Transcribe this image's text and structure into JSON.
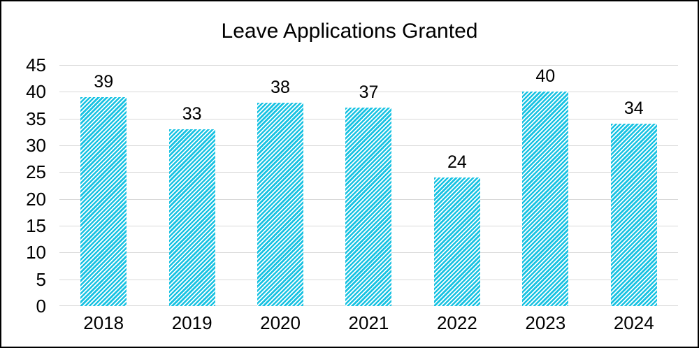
{
  "chart_data": {
    "type": "bar",
    "title": "Leave Applications Granted",
    "categories": [
      "2018",
      "2019",
      "2020",
      "2021",
      "2022",
      "2023",
      "2024"
    ],
    "values": [
      39,
      33,
      38,
      37,
      24,
      40,
      34
    ],
    "data_labels_shown": true,
    "xlabel": "",
    "ylabel": "",
    "ylim": [
      0,
      45
    ],
    "yticks": [
      0,
      5,
      10,
      15,
      20,
      25,
      30,
      35,
      40,
      45
    ],
    "grid": true,
    "legend": false,
    "bar_fill": {
      "pattern": "diagonal-stripe-up",
      "stripe_color": "#18C2E2",
      "background_color": "#FFFFFF"
    },
    "gridline_color": "#D9D9D9",
    "axis_line_color": "#D9D9D9",
    "text_color": "#000000",
    "frame_border_color": "#000000"
  }
}
